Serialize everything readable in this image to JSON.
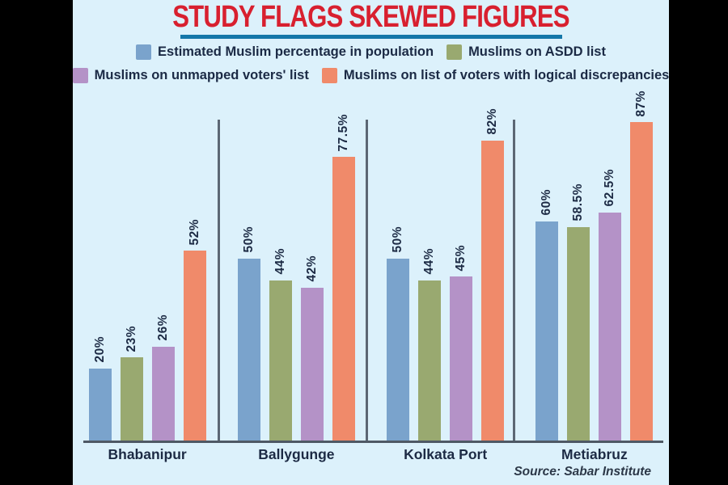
{
  "title": "STUDY FLAGS SKEWED FIGURES",
  "source": "Source: Sabar Institute",
  "colors": {
    "panel_background": "#dcf1fb",
    "outer_background": "#000000",
    "title_red": "#d8202f",
    "title_underline_blue": "#1477a9",
    "text_navy": "#1b2a45",
    "axis_slate": "#4e5965",
    "divider_slate": "#5c6774",
    "series_blue": "#7aa3cc",
    "series_green": "#99a970",
    "series_purple": "#b492c7",
    "series_orange": "#f08a6a"
  },
  "legend": [
    {
      "label": "Estimated Muslim percentage in population",
      "color": "#7aa3cc"
    },
    {
      "label": "Muslims on ASDD list",
      "color": "#99a970"
    },
    {
      "label": "Muslims on unmapped voters' list",
      "color": "#b492c7"
    },
    {
      "label": "Muslims on list of voters with logical discrepancies",
      "color": "#f08a6a"
    }
  ],
  "chart_data": {
    "type": "bar",
    "title": "STUDY FLAGS SKEWED FIGURES",
    "categories": [
      "Bhabanipur",
      "Ballygunge",
      "Kolkata Port",
      "Metiabruz"
    ],
    "series": [
      {
        "name": "Estimated Muslim percentage in population",
        "color": "#7aa3cc",
        "values": [
          20,
          50,
          50,
          60
        ],
        "labels": [
          "20%",
          "50%",
          "50%",
          "60%"
        ]
      },
      {
        "name": "Muslims on ASDD list",
        "color": "#99a970",
        "values": [
          23,
          44,
          44,
          58.5
        ],
        "labels": [
          "23%",
          "44%",
          "44%",
          "58.5%"
        ]
      },
      {
        "name": "Muslims on unmapped voters' list",
        "color": "#b492c7",
        "values": [
          26,
          42,
          45,
          62.5
        ],
        "labels": [
          "26%",
          "42%",
          "45%",
          "62.5%"
        ]
      },
      {
        "name": "Muslims on list of voters with logical discrepancies",
        "color": "#f08a6a",
        "values": [
          52,
          77.5,
          82,
          87
        ],
        "labels": [
          "52%",
          "77.5%",
          "82%",
          "87%"
        ]
      }
    ],
    "xlabel": "",
    "ylabel": "",
    "ylim": [
      0,
      100
    ],
    "grid": false,
    "legend_position": "top",
    "bar_value_labels_rotated": true,
    "source": "Source: Sabar Institute"
  }
}
